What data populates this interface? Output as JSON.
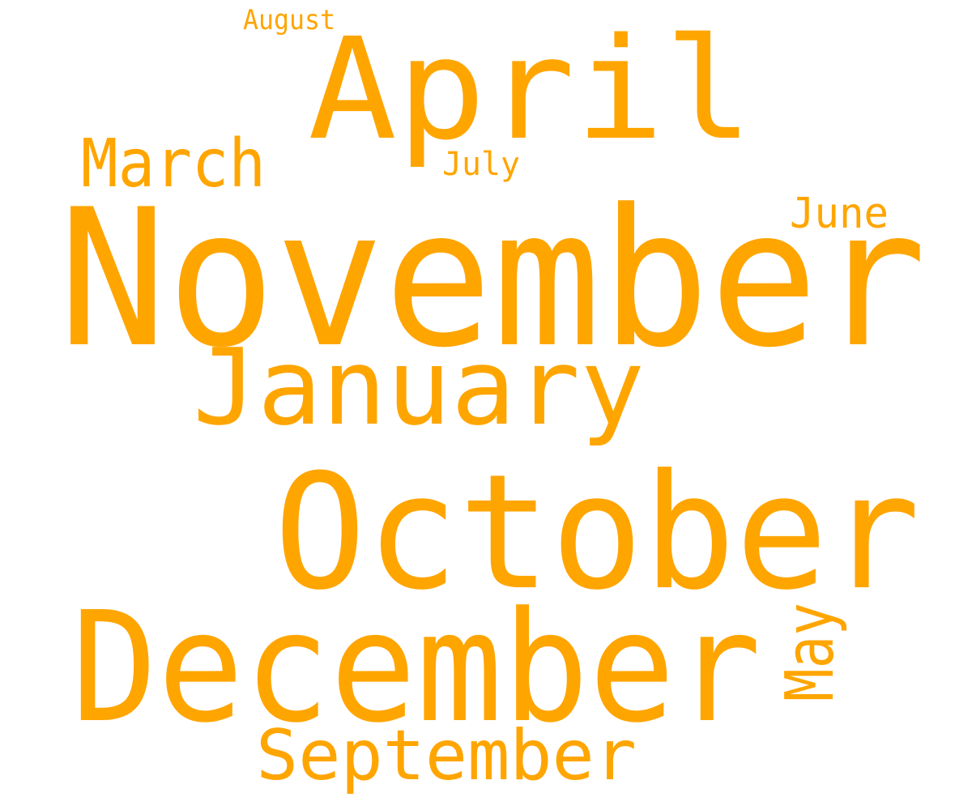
{
  "chart_data": {
    "type": "wordcloud",
    "color": "#FFA500",
    "words": [
      {
        "text": "November",
        "rotated": false
      },
      {
        "text": "October",
        "rotated": false
      },
      {
        "text": "December",
        "rotated": false
      },
      {
        "text": "April",
        "rotated": false
      },
      {
        "text": "January",
        "rotated": false
      },
      {
        "text": "September",
        "rotated": false
      },
      {
        "text": "March",
        "rotated": false
      },
      {
        "text": "May",
        "rotated": true
      },
      {
        "text": "June",
        "rotated": false
      },
      {
        "text": "July",
        "rotated": false
      },
      {
        "text": "August",
        "rotated": false
      }
    ]
  }
}
